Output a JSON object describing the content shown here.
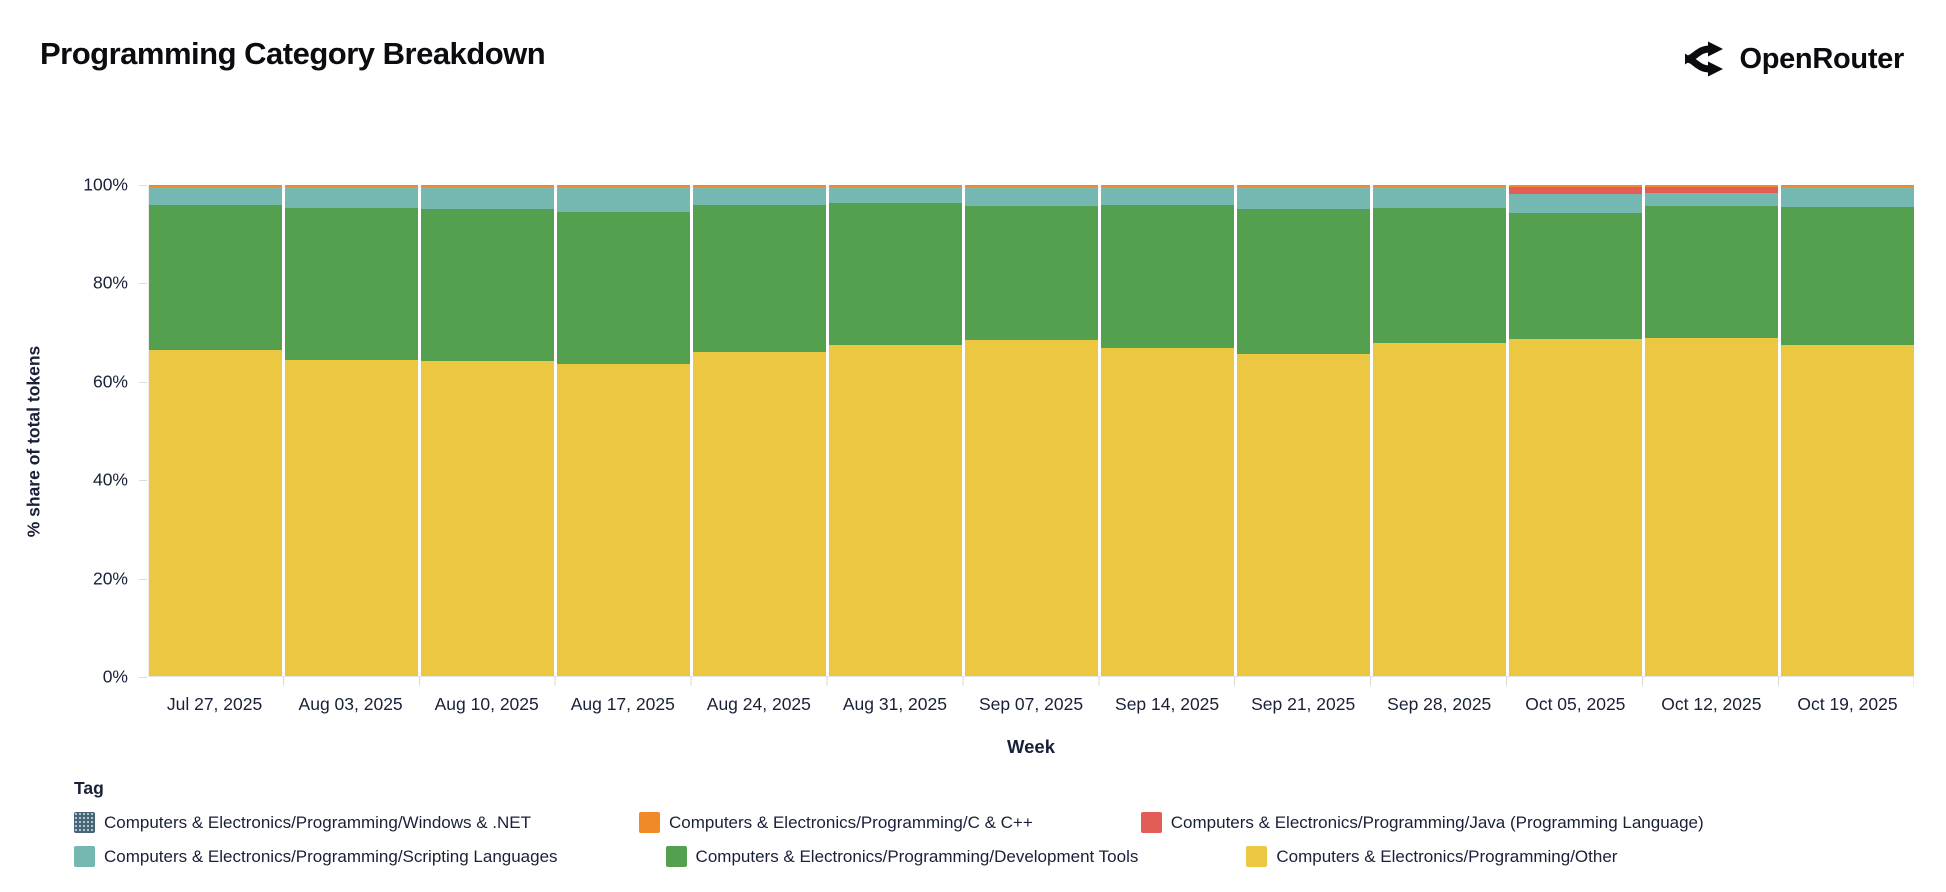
{
  "header": {
    "title": "Programming Category Breakdown",
    "brand": "OpenRouter"
  },
  "chart_data": {
    "type": "bar",
    "stacked": true,
    "percent": true,
    "title": "Programming Category Breakdown",
    "xlabel": "Week",
    "ylabel": "% share of total tokens",
    "ylim": [
      0,
      100
    ],
    "yticks": [
      0,
      20,
      40,
      60,
      80,
      100
    ],
    "ytick_suffix": "%",
    "grid": false,
    "legend_title": "Tag",
    "legend_position": "bottom",
    "legend_rows": [
      [
        0,
        1,
        2
      ],
      [
        3,
        4,
        5
      ]
    ],
    "categories": [
      "Jul 27, 2025",
      "Aug 03, 2025",
      "Aug 10, 2025",
      "Aug 17, 2025",
      "Aug 24, 2025",
      "Aug 31, 2025",
      "Sep 07, 2025",
      "Sep 14, 2025",
      "Sep 21, 2025",
      "Sep 28, 2025",
      "Oct 05, 2025",
      "Oct 12, 2025",
      "Oct 19, 2025"
    ],
    "series_order_note": "series listed top-to-bottom of the stack (same order as legend)",
    "series": [
      {
        "name": "Computers & Electronics/Programming/Windows & .NET",
        "color": "#49637a",
        "pattern": "dots",
        "values": [
          0.05,
          0.05,
          0.05,
          0.05,
          0.05,
          0.05,
          0.05,
          0.05,
          0.05,
          0.05,
          0.05,
          0.05,
          0.05
        ]
      },
      {
        "name": "Computers & Electronics/Programming/C & C++",
        "color": "#f08a28",
        "pattern": null,
        "values": [
          0.3,
          0.3,
          0.3,
          0.3,
          0.3,
          0.3,
          0.3,
          0.3,
          0.3,
          0.3,
          0.3,
          0.3,
          0.3
        ]
      },
      {
        "name": "Computers & Electronics/Programming/Java (Programming Language)",
        "color": "#e15d56",
        "pattern": null,
        "values": [
          0,
          0,
          0,
          0,
          0,
          0,
          0,
          0,
          0,
          0,
          1.4,
          1.2,
          0
        ]
      },
      {
        "name": "Computers & Electronics/Programming/Scripting Languages",
        "color": "#75b7b1",
        "pattern": null,
        "values": [
          3.75,
          4.35,
          4.55,
          5.15,
          3.75,
          3.25,
          3.95,
          3.75,
          4.55,
          4.25,
          3.95,
          2.75,
          4.05
        ]
      },
      {
        "name": "Computers & Electronics/Programming/Development Tools",
        "color": "#54a04e",
        "pattern": null,
        "values": [
          29.6,
          30.9,
          30.9,
          31.0,
          30.0,
          29.0,
          27.2,
          29.1,
          29.6,
          27.6,
          25.6,
          26.8,
          28.2
        ]
      },
      {
        "name": "Computers & Electronics/Programming/Other",
        "color": "#ecc742",
        "pattern": null,
        "values": [
          66.3,
          64.4,
          64.2,
          63.5,
          65.9,
          67.4,
          68.5,
          66.8,
          65.5,
          67.8,
          68.7,
          68.9,
          67.4
        ]
      }
    ]
  }
}
